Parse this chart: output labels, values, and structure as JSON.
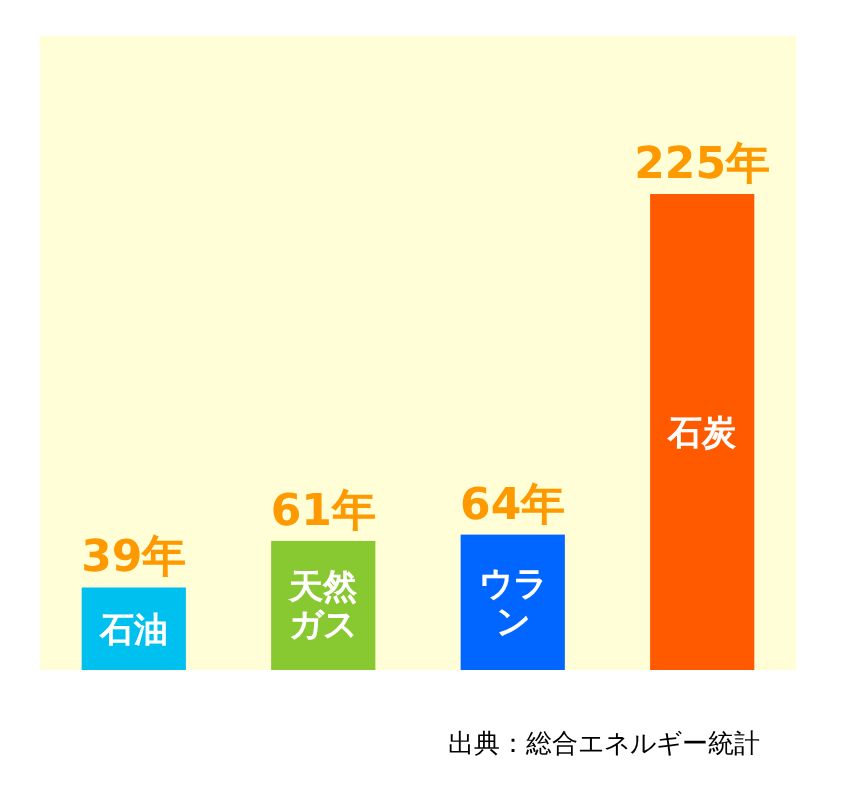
{
  "chart_data": {
    "type": "bar",
    "categories": [
      "石油",
      "天然ガス",
      "ウラン",
      "石炭"
    ],
    "values": [
      39,
      61,
      64,
      225
    ],
    "colors": [
      "#00c0f0",
      "#88c830",
      "#0066ff",
      "#ff5a00"
    ],
    "value_labels": [
      "39年",
      "61年",
      "64年",
      "225年"
    ],
    "annotations": [
      "出典：総合エネルギー統計"
    ]
  }
}
